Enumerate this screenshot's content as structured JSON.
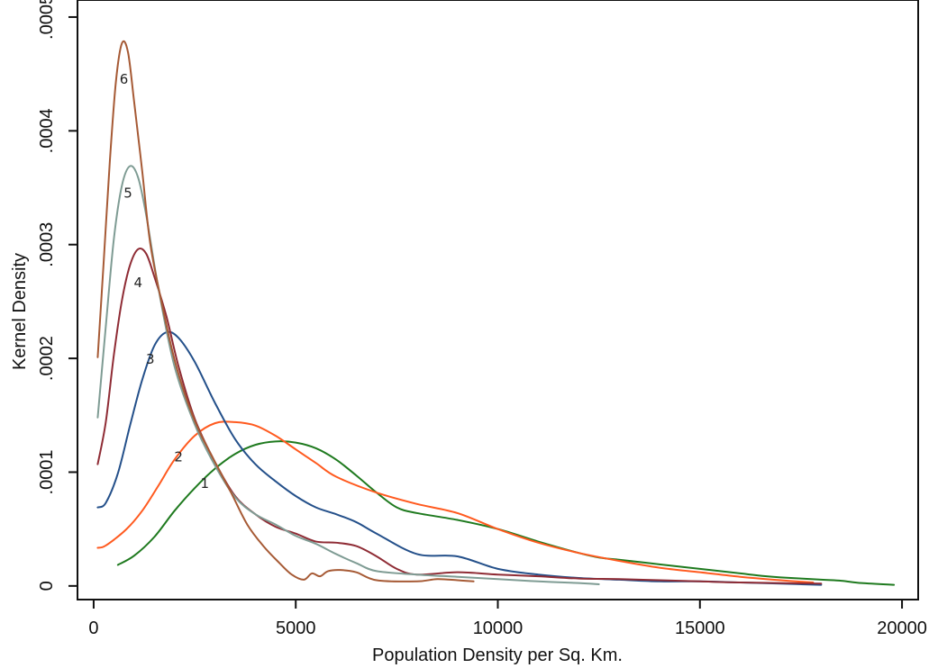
{
  "chart_data": {
    "type": "line",
    "title": "",
    "xlabel": "Population Density per Sq. Km.",
    "ylabel": "Kernel Density",
    "xlim": [
      -400,
      20400
    ],
    "ylim": [
      -1.2e-05,
      0.000515
    ],
    "x_ticks": [
      0,
      5000,
      10000,
      15000,
      20000
    ],
    "x_tick_labels": [
      "0",
      "5000",
      "10000",
      "15000",
      "20000"
    ],
    "y_ticks": [
      0,
      0.0001,
      0.0002,
      0.0003,
      0.0004,
      0.0005
    ],
    "y_tick_labels": [
      "0",
      ".0001",
      ".0002",
      ".0003",
      ".0004",
      ".0005"
    ],
    "grid": false,
    "legend": false,
    "series": [
      {
        "name": "1",
        "color": "#1f7a1f",
        "label_at": [
          2750,
          8.95e-05
        ],
        "points": [
          [
            600,
            1.85e-05
          ],
          [
            1000,
            2.65e-05
          ],
          [
            1500,
            4.3e-05
          ],
          [
            2000,
            6.6e-05
          ],
          [
            2500,
            8.6e-05
          ],
          [
            3000,
            0.000103
          ],
          [
            3500,
            0.000116
          ],
          [
            4000,
            0.000124
          ],
          [
            4500,
            0.000127
          ],
          [
            5000,
            0.000126
          ],
          [
            5500,
            0.000121
          ],
          [
            6000,
            0.000111
          ],
          [
            6500,
            9.7e-05
          ],
          [
            7000,
            8.2e-05
          ],
          [
            7500,
            6.9e-05
          ],
          [
            8000,
            6.4e-05
          ],
          [
            9000,
            5.8e-05
          ],
          [
            10000,
            5e-05
          ],
          [
            11000,
            3.9e-05
          ],
          [
            12000,
            2.9e-05
          ],
          [
            12500,
            2.5e-05
          ],
          [
            13000,
            2.3e-05
          ],
          [
            13500,
            2.1e-05
          ],
          [
            14000,
            1.9e-05
          ],
          [
            15000,
            1.5e-05
          ],
          [
            16000,
            1.1e-05
          ],
          [
            16500,
            9e-06
          ],
          [
            17000,
            7.5e-06
          ],
          [
            18000,
            5.5e-06
          ],
          [
            18500,
            4.5e-06
          ],
          [
            19000,
            2.5e-06
          ],
          [
            19800,
            1e-06
          ]
        ]
      },
      {
        "name": "2",
        "color": "#ff5a1f",
        "label_at": [
          2100,
          0.000113
        ],
        "points": [
          [
            100,
            3.35e-05
          ],
          [
            300,
            3.55e-05
          ],
          [
            800,
            4.95e-05
          ],
          [
            1200,
            6.6e-05
          ],
          [
            1600,
            8.8e-05
          ],
          [
            2000,
            0.000111
          ],
          [
            2500,
            0.000132
          ],
          [
            3000,
            0.000143
          ],
          [
            3500,
            0.000144
          ],
          [
            4000,
            0.000141
          ],
          [
            4500,
            0.000132
          ],
          [
            5000,
            0.00012
          ],
          [
            5500,
            0.000108
          ],
          [
            6000,
            9.6e-05
          ],
          [
            7000,
            8.2e-05
          ],
          [
            8000,
            7.2e-05
          ],
          [
            9000,
            6.4e-05
          ],
          [
            10000,
            5e-05
          ],
          [
            11000,
            3.8e-05
          ],
          [
            12000,
            2.9e-05
          ],
          [
            13000,
            2.2e-05
          ],
          [
            14000,
            1.6e-05
          ],
          [
            15000,
            1.2e-05
          ],
          [
            16000,
            8e-06
          ],
          [
            17000,
            5e-06
          ],
          [
            17800,
            3e-06
          ]
        ]
      },
      {
        "name": "3",
        "color": "#24508a",
        "label_at": [
          1400,
          0.000199
        ],
        "points": [
          [
            100,
            6.9e-05
          ],
          [
            300,
            7.3e-05
          ],
          [
            600,
            9.9e-05
          ],
          [
            900,
            0.000141
          ],
          [
            1200,
            0.000181
          ],
          [
            1500,
            0.000211
          ],
          [
            1800,
            0.000223
          ],
          [
            2100,
            0.000218
          ],
          [
            2500,
            0.000197
          ],
          [
            3000,
            0.000161
          ],
          [
            3500,
            0.000129
          ],
          [
            4000,
            0.000107
          ],
          [
            4500,
            9.2e-05
          ],
          [
            5000,
            7.9e-05
          ],
          [
            5500,
            6.9e-05
          ],
          [
            6000,
            6.3e-05
          ],
          [
            6500,
            5.6e-05
          ],
          [
            7000,
            4.6e-05
          ],
          [
            8000,
            2.8e-05
          ],
          [
            9000,
            2.6e-05
          ],
          [
            10000,
            1.5e-05
          ],
          [
            11000,
            1e-05
          ],
          [
            12000,
            7e-06
          ],
          [
            13000,
            5.5e-06
          ],
          [
            14000,
            4e-06
          ],
          [
            15000,
            4e-06
          ],
          [
            16000,
            3e-06
          ],
          [
            17000,
            2e-06
          ],
          [
            18000,
            1e-06
          ]
        ]
      },
      {
        "name": "4",
        "color": "#8f2c35",
        "label_at": [
          1100,
          0.000266
        ],
        "points": [
          [
            100,
            0.000107
          ],
          [
            300,
            0.000144
          ],
          [
            500,
            0.000203
          ],
          [
            700,
            0.000251
          ],
          [
            900,
            0.000282
          ],
          [
            1100,
            0.000296
          ],
          [
            1300,
            0.000292
          ],
          [
            1500,
            0.000272
          ],
          [
            1800,
            0.000237
          ],
          [
            2100,
            0.000193
          ],
          [
            2500,
            0.000147
          ],
          [
            3000,
            0.000109
          ],
          [
            3500,
            7.9e-05
          ],
          [
            4000,
            6.3e-05
          ],
          [
            4500,
            5.2e-05
          ],
          [
            5000,
            4.6e-05
          ],
          [
            5500,
            3.9e-05
          ],
          [
            6000,
            3.8e-05
          ],
          [
            6500,
            3.5e-05
          ],
          [
            7000,
            2.6e-05
          ],
          [
            7500,
            1.5e-05
          ],
          [
            8000,
            1e-05
          ],
          [
            9000,
            1.2e-05
          ],
          [
            10000,
            1e-05
          ],
          [
            11000,
            8.5e-06
          ],
          [
            12000,
            6.5e-06
          ],
          [
            13000,
            6e-06
          ],
          [
            14000,
            5e-06
          ],
          [
            15000,
            4e-06
          ],
          [
            16000,
            3e-06
          ],
          [
            18000,
            2e-06
          ]
        ]
      },
      {
        "name": "5",
        "color": "#7f9c94",
        "label_at": [
          850,
          0.000345
        ],
        "points": [
          [
            100,
            0.000148
          ],
          [
            300,
            0.000228
          ],
          [
            500,
            0.000305
          ],
          [
            700,
            0.000352
          ],
          [
            900,
            0.000369
          ],
          [
            1100,
            0.000359
          ],
          [
            1300,
            0.000326
          ],
          [
            1600,
            0.000262
          ],
          [
            2000,
            0.000193
          ],
          [
            2500,
            0.000142
          ],
          [
            3000,
            0.000106
          ],
          [
            3500,
            7.8e-05
          ],
          [
            4000,
            6.3e-05
          ],
          [
            4500,
            5.4e-05
          ],
          [
            5000,
            4.4e-05
          ],
          [
            5500,
            3.7e-05
          ],
          [
            6000,
            2.8e-05
          ],
          [
            6500,
            2e-05
          ],
          [
            7000,
            1.3e-05
          ],
          [
            8000,
            1e-05
          ],
          [
            9000,
            8e-06
          ],
          [
            10000,
            6e-06
          ],
          [
            11000,
            4e-06
          ],
          [
            12000,
            2.5e-06
          ],
          [
            12500,
            1.5e-06
          ]
        ]
      },
      {
        "name": "6",
        "color": "#a65a35",
        "label_at": [
          750,
          0.000445
        ],
        "points": [
          [
            100,
            0.000201
          ],
          [
            250,
            0.000286
          ],
          [
            400,
            0.000373
          ],
          [
            550,
            0.000443
          ],
          [
            700,
            0.000477
          ],
          [
            850,
            0.000469
          ],
          [
            1000,
            0.000426
          ],
          [
            1200,
            0.000365
          ],
          [
            1400,
            0.000301
          ],
          [
            1700,
            0.000246
          ],
          [
            2000,
            0.000199
          ],
          [
            2300,
            0.000164
          ],
          [
            2600,
            0.000137
          ],
          [
            3000,
            0.000109
          ],
          [
            3400,
            8.2e-05
          ],
          [
            3800,
            5.4e-05
          ],
          [
            4200,
            3.5e-05
          ],
          [
            4600,
            2e-05
          ],
          [
            4900,
            1e-05
          ],
          [
            5200,
            5.5e-06
          ],
          [
            5400,
            1.1e-05
          ],
          [
            5600,
            8.5e-06
          ],
          [
            5800,
            1.3e-05
          ],
          [
            6100,
            1.4e-05
          ],
          [
            6500,
            1.2e-05
          ],
          [
            7000,
            5e-06
          ],
          [
            8000,
            4e-06
          ],
          [
            8500,
            6e-06
          ],
          [
            9000,
            5e-06
          ],
          [
            9400,
            4e-06
          ]
        ]
      }
    ]
  }
}
